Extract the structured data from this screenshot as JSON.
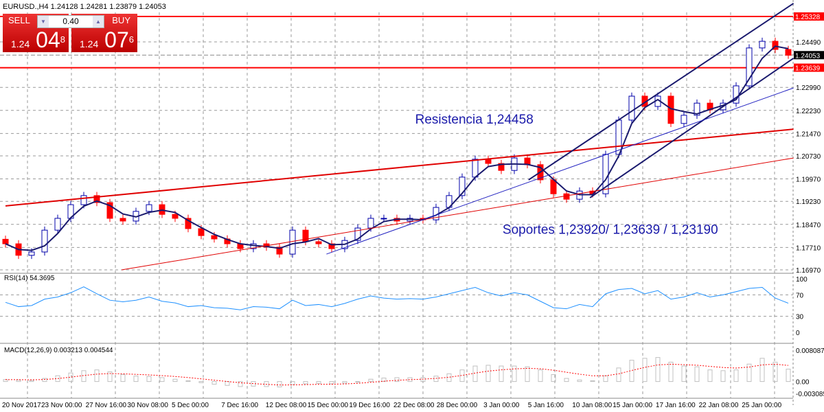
{
  "header": {
    "title": "EURUSD.,H4  1.24128 1.24281 1.23879 1.24053"
  },
  "trade_panel": {
    "sell_label": "SELL",
    "buy_label": "BUY",
    "lot": "0.40",
    "sell_price": {
      "prefix": "1.24",
      "main": "04",
      "sup": "8"
    },
    "buy_price": {
      "prefix": "1.24",
      "main": "07",
      "sup": "6"
    }
  },
  "chart_data": [
    {
      "type": "candlestick",
      "symbol": "EURUSD.",
      "timeframe": "H4",
      "ylim": [
        1.169,
        1.2565
      ],
      "yticks": [
        "1.24490",
        "1.22990",
        "1.22230",
        "1.21470",
        "1.20730",
        "1.19970",
        "1.19230",
        "1.18470",
        "1.17710",
        "1.16970"
      ],
      "closes": [
        1.1783,
        1.1745,
        1.1756,
        1.1828,
        1.1867,
        1.1912,
        1.1942,
        1.1919,
        1.1867,
        1.1858,
        1.189,
        1.1912,
        1.188,
        1.1867,
        1.1833,
        1.181,
        1.1799,
        1.1783,
        1.1767,
        1.1783,
        1.1772,
        1.1749,
        1.1828,
        1.179,
        1.1783,
        1.1767,
        1.1794,
        1.1835,
        1.1867,
        1.1867,
        1.1858,
        1.1867,
        1.1862,
        1.1903,
        1.1942,
        1.2003,
        1.2062,
        1.2048,
        1.2025,
        1.2066,
        1.2044,
        1.1994,
        1.1948,
        1.193,
        1.1957,
        1.1948,
        1.2078,
        1.2191,
        1.227,
        1.2236,
        1.227,
        1.218,
        1.2207,
        1.2247,
        1.2225,
        1.2247,
        1.2304,
        1.2429,
        1.2451,
        1.2424,
        1.2405
      ],
      "price_labels": [
        {
          "value": "1.25328",
          "price": 1.25328,
          "color": "#ff0000"
        },
        {
          "value": "1.24053",
          "price": 1.24053,
          "color": "#000000"
        },
        {
          "value": "1.23639",
          "price": 1.23639,
          "color": "#ff0000"
        }
      ],
      "trendlines": [
        {
          "color": "#e00000",
          "width": 2,
          "from": [
            0,
            1.1908
          ],
          "to": [
            60.4,
            1.2161
          ]
        },
        {
          "color": "#e00000",
          "width": 1,
          "from": [
            8.9,
            1.1697
          ],
          "to": [
            60.4,
            1.2066
          ]
        },
        {
          "color": "#1a1a6e",
          "width": 2,
          "from": [
            40.1,
            1.1994
          ],
          "to": [
            60.4,
            1.2576
          ]
        },
        {
          "color": "#1a1a6e",
          "width": 2,
          "from": [
            44.8,
            1.1935
          ],
          "to": [
            60.4,
            1.2395
          ]
        },
        {
          "color": "#2020c0",
          "width": 1,
          "from": [
            24.6,
            1.1749
          ],
          "to": [
            60.4,
            1.2297
          ]
        }
      ],
      "annotations": [
        {
          "text": "Resistencia 1,24458",
          "at": [
            31.4,
            1.2179
          ]
        },
        {
          "text": "Soportes 1,23920/ 1,23639 / 1,23190",
          "at": [
            38.1,
            1.1816
          ]
        }
      ],
      "x_labels": [
        {
          "text": "20 Nov 2017",
          "at": 0
        },
        {
          "text": "23 Nov 00:00",
          "at": 3
        },
        {
          "text": "27 Nov 16:00",
          "at": 6.4
        },
        {
          "text": "30 Nov 08:00",
          "at": 9.6
        },
        {
          "text": "5 Dec 00:00",
          "at": 13
        },
        {
          "text": "7 Dec 16:00",
          "at": 16.8
        },
        {
          "text": "12 Dec 08:00",
          "at": 20.2
        },
        {
          "text": "15 Dec 00:00",
          "at": 23.4
        },
        {
          "text": "19 Dec 16:00",
          "at": 26.6
        },
        {
          "text": "22 Dec 08:00",
          "at": 30
        },
        {
          "text": "28 Dec 00:00",
          "at": 33.3
        },
        {
          "text": "3 Jan 00:00",
          "at": 36.9
        },
        {
          "text": "5 Jan 16:00",
          "at": 40.3
        },
        {
          "text": "10 Jan 08:00",
          "at": 43.7
        },
        {
          "text": "15 Jan 00:00",
          "at": 46.8
        },
        {
          "text": "17 Jan 16:00",
          "at": 50.1
        },
        {
          "text": "22 Jan 08:00",
          "at": 53.4
        },
        {
          "text": "25 Jan 00:00",
          "at": 56.7
        }
      ],
      "colors": {
        "bull": "#0000aa",
        "bear": "#ff0000",
        "ma": "#1a1a6e"
      }
    },
    {
      "type": "line",
      "label": "RSI(14) 54.3695",
      "ylim": [
        0,
        100
      ],
      "yticks": [
        "100",
        "70",
        "30",
        "0"
      ],
      "color": "#1e90ff",
      "values": [
        56,
        48,
        50,
        62,
        66,
        74,
        85,
        72,
        60,
        57,
        60,
        66,
        58,
        55,
        48,
        50,
        46,
        45,
        42,
        48,
        47,
        44,
        60,
        50,
        52,
        48,
        54,
        62,
        68,
        64,
        62,
        63,
        62,
        66,
        72,
        78,
        84,
        74,
        68,
        74,
        70,
        58,
        46,
        44,
        52,
        48,
        72,
        80,
        82,
        72,
        78,
        62,
        66,
        74,
        66,
        70,
        76,
        82,
        84,
        64,
        54.4
      ]
    },
    {
      "type": "bar",
      "label": "MACD(12,26,9) 0.003213 0.004544",
      "ylim": [
        -0.003085,
        0.008087
      ],
      "yticks": [
        "0.008087",
        "0.00",
        "-0.003085"
      ],
      "bar_color": "#c0c0c0",
      "signal_color": "#ff0000",
      "values": [
        0.0005,
        0.0004,
        0.0003,
        0.0008,
        0.0015,
        0.0022,
        0.0028,
        0.003,
        0.0025,
        0.0018,
        0.0014,
        0.0013,
        0.001,
        0.0006,
        0.0002,
        -0.0003,
        -0.0007,
        -0.001,
        -0.0013,
        -0.0012,
        -0.0013,
        -0.0014,
        -0.0008,
        -0.0006,
        -0.0005,
        -0.0006,
        -0.0004,
        0.0,
        0.0006,
        0.0009,
        0.001,
        0.001,
        0.001,
        0.0014,
        0.002,
        0.003,
        0.004,
        0.0042,
        0.004,
        0.004,
        0.0038,
        0.003,
        0.0018,
        0.0008,
        0.0004,
        0.0002,
        0.0015,
        0.0035,
        0.0055,
        0.006,
        0.0062,
        0.005,
        0.004,
        0.0038,
        0.003,
        0.0028,
        0.003,
        0.0045,
        0.006,
        0.005,
        0.0032
      ]
    }
  ]
}
